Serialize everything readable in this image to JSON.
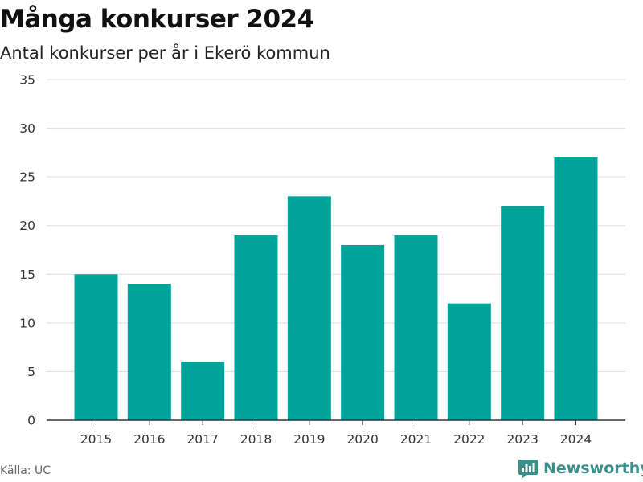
{
  "header": {
    "title": "Många konkurser 2024",
    "subtitle": "Antal konkurser per år i Ekerö kommun"
  },
  "footer": {
    "source": "Källa: UC",
    "brand": "Newsworthy",
    "brand_icon": "bar-chart-logo-icon"
  },
  "colors": {
    "bar": "#00a399",
    "grid": "#dddddd",
    "axis": "#333333",
    "brand": "#3a8f8a"
  },
  "chart_data": {
    "type": "bar",
    "title": "Många konkurser 2024",
    "subtitle": "Antal konkurser per år i Ekerö kommun",
    "categories": [
      "2015",
      "2016",
      "2017",
      "2018",
      "2019",
      "2020",
      "2021",
      "2022",
      "2023",
      "2024"
    ],
    "values": [
      15,
      14,
      6,
      19,
      23,
      18,
      19,
      12,
      22,
      27
    ],
    "ylim": [
      0,
      35
    ],
    "yticks": [
      0,
      5,
      10,
      15,
      20,
      25,
      30,
      35
    ],
    "grid": true,
    "xlabel": "",
    "ylabel": ""
  }
}
